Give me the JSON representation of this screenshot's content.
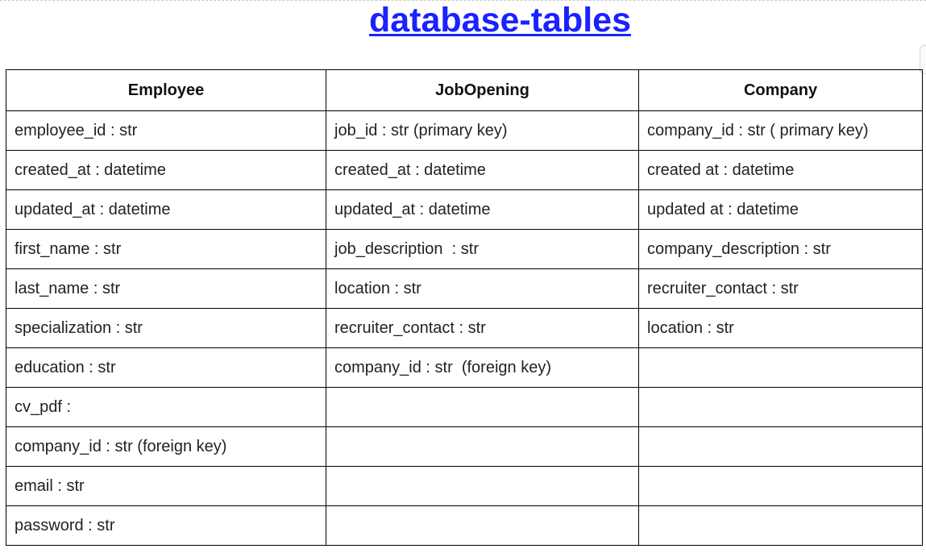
{
  "title": "database-tables",
  "tables": {
    "headers": [
      "Employee",
      "JobOpening",
      "Company"
    ],
    "rows": [
      [
        "employee_id : str",
        "job_id : str (primary key)",
        "company_id : str ( primary key)"
      ],
      [
        "created_at : datetime",
        "created_at : datetime",
        "created at : datetime"
      ],
      [
        "updated_at : datetime",
        "updated_at : datetime",
        "updated at : datetime"
      ],
      [
        "first_name : str",
        "job_description  : str",
        "company_description : str"
      ],
      [
        "last_name : str",
        "location : str",
        "recruiter_contact : str"
      ],
      [
        "specialization : str",
        "recruiter_contact : str",
        "location : str"
      ],
      [
        "education : str",
        "company_id : str  (foreign key)",
        ""
      ],
      [
        "cv_pdf :",
        "",
        ""
      ],
      [
        "company_id : str (foreign key)",
        "",
        ""
      ],
      [
        "email : str",
        "",
        ""
      ],
      [
        "password : str",
        "",
        ""
      ]
    ]
  }
}
